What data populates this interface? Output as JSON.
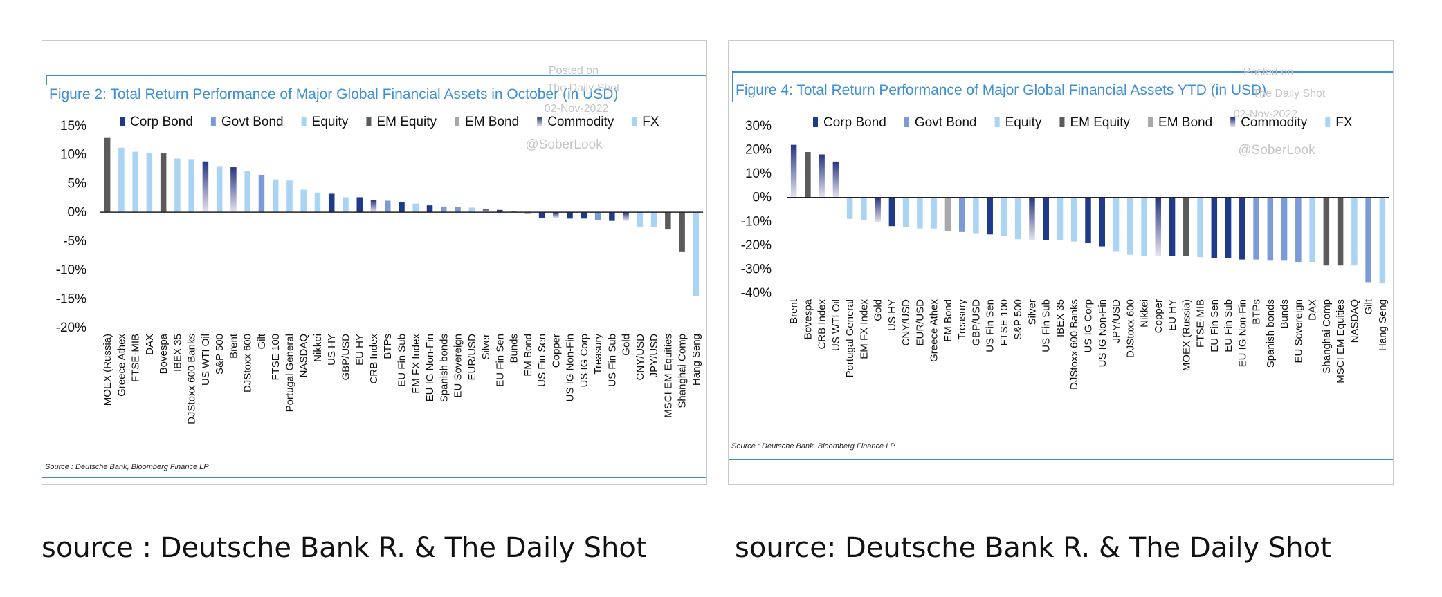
{
  "colors": {
    "corp_bond": "#1f3a8a",
    "govt_bond": "#7b9bd8",
    "equity": "#a9d4f3",
    "em_equity": "#5b5b5b",
    "em_bond": "#a8a8a8",
    "fx": "#a9d4f3",
    "commodity_top": "#27357f",
    "commodity_bottom": "#e6e2ef",
    "title_blue": "#3d8fd6",
    "watermark": "#c5c5c5",
    "axis": "#222222"
  },
  "legend": [
    {
      "key": "corp_bond",
      "label": "Corp Bond"
    },
    {
      "key": "govt_bond",
      "label": "Govt Bond"
    },
    {
      "key": "equity",
      "label": "Equity"
    },
    {
      "key": "em_equity",
      "label": "EM Equity"
    },
    {
      "key": "em_bond",
      "label": "EM Bond"
    },
    {
      "key": "commodity",
      "label": "Commodity"
    },
    {
      "key": "fx",
      "label": "FX"
    }
  ],
  "chart_data": [
    {
      "type": "bar",
      "title": "Figure 2: Total Return Performance of Major Global Financial Assets in October (in USD)",
      "watermark": [
        "Posted on",
        "The Daily Shot",
        "02-Nov-2022",
        "@SoberLook"
      ],
      "source_note": "Source : Deutsche Bank, Bloomberg Finance LP",
      "ylim": [
        -20,
        15
      ],
      "yticks": [
        15,
        10,
        5,
        0,
        -5,
        -10,
        -15,
        -20
      ],
      "ytick_labels": [
        "15%",
        "10%",
        "5%",
        "0%",
        "-5%",
        "-10%",
        "-15%",
        "-20%"
      ],
      "categories": [
        "MOEX (Russia)",
        "Greece Athex",
        "FTSE-MIB",
        "DAX",
        "Bovespa",
        "IBEX 35",
        "DJStoxx 600 Banks",
        "US WTI Oil",
        "S&P 500",
        "Brent",
        "DJStoxx 600",
        "Gilt",
        "FTSE 100",
        "Portugal General",
        "NASDAQ",
        "Nikkei",
        "US HY",
        "GBP/USD",
        "EU HY",
        "CRB Index",
        "BTPs",
        "EU Fin Sub",
        "EM FX Index",
        "EU IG Non-Fin",
        "Spanish bonds",
        "EU Sovereign",
        "EUR/USD",
        "Silver",
        "EU Fin Sen",
        "Bunds",
        "EM Bond",
        "US Fin Sen",
        "Copper",
        "US IG Non-Fin",
        "US IG Corp",
        "Treasury",
        "US Fin Sub",
        "Gold",
        "CNY/USD",
        "JPY/USD",
        "MSCI EM Equities",
        "Shanghai Comp",
        "Hang Seng"
      ],
      "values": [
        13.0,
        11.2,
        10.5,
        10.3,
        10.2,
        9.3,
        9.2,
        8.8,
        8.0,
        7.8,
        7.2,
        6.5,
        5.7,
        5.5,
        3.9,
        3.4,
        3.2,
        2.6,
        2.6,
        2.1,
        2.0,
        1.8,
        1.5,
        1.2,
        1.0,
        0.9,
        0.8,
        0.6,
        0.4,
        0.2,
        -0.2,
        -1.0,
        -1.0,
        -1.1,
        -1.1,
        -1.4,
        -1.5,
        -1.5,
        -2.5,
        -2.6,
        -3.0,
        -6.8,
        -14.5
      ],
      "asset_classes": [
        "em_equity",
        "equity",
        "equity",
        "equity",
        "em_equity",
        "equity",
        "equity",
        "commodity",
        "equity",
        "commodity",
        "equity",
        "govt_bond",
        "equity",
        "equity",
        "equity",
        "equity",
        "corp_bond",
        "fx",
        "corp_bond",
        "commodity",
        "govt_bond",
        "corp_bond",
        "fx",
        "corp_bond",
        "govt_bond",
        "govt_bond",
        "fx",
        "commodity",
        "corp_bond",
        "govt_bond",
        "em_bond",
        "corp_bond",
        "commodity",
        "corp_bond",
        "corp_bond",
        "govt_bond",
        "corp_bond",
        "commodity",
        "fx",
        "fx",
        "em_equity",
        "em_equity",
        "equity"
      ]
    },
    {
      "type": "bar",
      "title": "Figure 4: Total Return Performance of Major Global Financial Assets YTD (in USD)",
      "watermark": [
        "Posted on",
        "The Daily Shot",
        "02-Nov-2022",
        "@SoberLook"
      ],
      "source_note": "Source : Deutsche Bank, Bloomberg Finance LP",
      "ylim": [
        -40,
        30
      ],
      "yticks": [
        30,
        20,
        10,
        0,
        -10,
        -20,
        -30,
        -40
      ],
      "ytick_labels": [
        "30%",
        "20%",
        "10%",
        "0%",
        "-10%",
        "-20%",
        "-30%",
        "-40%"
      ],
      "categories": [
        "Brent",
        "Bovespa",
        "CRB Index",
        "US WTI Oil",
        "Portugal General",
        "EM FX Index",
        "Gold",
        "US HY",
        "CNY/USD",
        "EUR/USD",
        "Greece Athex",
        "EM Bond",
        "Treasury",
        "GBP/USD",
        "US Fin Sen",
        "FTSE 100",
        "S&P 500",
        "Silver",
        "US Fin Sub",
        "IBEX 35",
        "DJStoxx 600 Banks",
        "US IG Corp",
        "US IG Non-Fin",
        "JPY/USD",
        "DJStoxx 600",
        "Nikkei",
        "Copper",
        "EU HY",
        "MOEX (Russia)",
        "FTSE-MIB",
        "EU Fin Sen",
        "EU Fin Sub",
        "EU IG Non-Fin",
        "BTPs",
        "Spanish bonds",
        "Bunds",
        "EU Sovereign",
        "DAX",
        "Shanghai Comp",
        "MSCI EM Equities",
        "NASDAQ",
        "Gilt",
        "Hang Seng"
      ],
      "values": [
        22,
        19,
        18,
        15,
        -9,
        -9.5,
        -10.5,
        -12,
        -12.5,
        -13,
        -13,
        -14,
        -14.5,
        -15,
        -15.5,
        -16,
        -17.5,
        -18,
        -18,
        -18,
        -18.5,
        -19,
        -20.5,
        -22.5,
        -24,
        -24.5,
        -24.5,
        -24.5,
        -24.5,
        -25,
        -25.5,
        -25.5,
        -26,
        -26,
        -26.5,
        -26.5,
        -27,
        -27,
        -28.5,
        -28.5,
        -28.5,
        -35.5,
        -36
      ],
      "asset_classes": [
        "commodity",
        "em_equity",
        "commodity",
        "commodity",
        "equity",
        "fx",
        "commodity",
        "corp_bond",
        "fx",
        "fx",
        "equity",
        "em_bond",
        "govt_bond",
        "fx",
        "corp_bond",
        "equity",
        "equity",
        "commodity",
        "corp_bond",
        "equity",
        "equity",
        "corp_bond",
        "corp_bond",
        "fx",
        "equity",
        "equity",
        "commodity",
        "corp_bond",
        "em_equity",
        "equity",
        "corp_bond",
        "corp_bond",
        "corp_bond",
        "govt_bond",
        "govt_bond",
        "govt_bond",
        "govt_bond",
        "equity",
        "em_equity",
        "em_equity",
        "equity",
        "govt_bond",
        "equity"
      ]
    }
  ],
  "captions": {
    "left": "source : Deutsche Bank R. & The Daily Shot",
    "right": "source: Deutsche Bank R. & The Daily Shot"
  }
}
